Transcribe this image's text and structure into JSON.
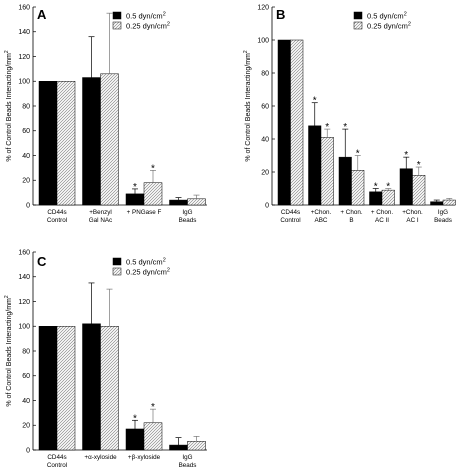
{
  "units": {
    "legend_dyn_1": "0.5 dyn/cm",
    "legend_dyn_2": "0.25 dyn/cm",
    "legend_sup": "2",
    "ylabel_main": "% of Control Beads Interacting/mm",
    "ylabel_sup": "2"
  },
  "chart_data": [
    {
      "id": "A",
      "type": "bar",
      "panel_label": "A",
      "ylabel": "% of Control Beads Interacting/mm²",
      "ylim": [
        0,
        160
      ],
      "yticks": [
        0,
        20,
        40,
        60,
        80,
        100,
        120,
        140,
        160
      ],
      "ytick_labels": [
        "0",
        "20",
        "40",
        "60",
        "80",
        "100",
        "120",
        "140",
        "160"
      ],
      "legend": [
        "0.5 dyn/cm²",
        "0.25 dyn/cm²"
      ],
      "legend_position": "top-right",
      "categories": [
        [
          "CD44s",
          "Control"
        ],
        [
          "+Benzyl",
          "Gal NAc"
        ],
        [
          "+ PNGase F"
        ],
        [
          "IgG",
          "Beads"
        ]
      ],
      "series": [
        {
          "name": "0.5 dyn/cm²",
          "values": [
            100,
            103,
            9,
            4
          ],
          "errors": [
            0,
            33,
            4,
            2
          ],
          "sig": [
            false,
            false,
            true,
            false
          ]
        },
        {
          "name": "0.25 dyn/cm²",
          "values": [
            100,
            106,
            18,
            5
          ],
          "errors": [
            0,
            49,
            10,
            3
          ],
          "sig": [
            false,
            false,
            true,
            false
          ]
        }
      ]
    },
    {
      "id": "B",
      "type": "bar",
      "panel_label": "B",
      "ylabel": "% of Control Beads Interacting/mm²",
      "ylim": [
        0,
        120
      ],
      "yticks": [
        0,
        20,
        40,
        60,
        80,
        100,
        120
      ],
      "ytick_labels": [
        "0",
        "20",
        "40",
        "60",
        "80",
        "100",
        "120"
      ],
      "legend": [
        "0.5 dyn/cm²",
        "0.25 dyn/cm²"
      ],
      "legend_position": "top-right",
      "categories": [
        [
          "CD44s",
          "Control"
        ],
        [
          "+Chon.",
          "ABC"
        ],
        [
          "+ Chon.",
          "B"
        ],
        [
          "+ Chon.",
          "AC II"
        ],
        [
          "+Chon.",
          "AC I"
        ],
        [
          "IgG",
          "Beads"
        ]
      ],
      "series": [
        {
          "name": "0.5 dyn/cm²",
          "values": [
            100,
            48,
            29,
            8,
            22,
            2
          ],
          "errors": [
            0,
            14,
            17,
            2,
            7,
            1
          ],
          "sig": [
            false,
            true,
            true,
            true,
            true,
            false
          ]
        },
        {
          "name": "0.25 dyn/cm²",
          "values": [
            100,
            41,
            21,
            9,
            18,
            3
          ],
          "errors": [
            0,
            5,
            9,
            1,
            5,
            1
          ],
          "sig": [
            false,
            true,
            true,
            true,
            true,
            false
          ]
        }
      ]
    },
    {
      "id": "C",
      "type": "bar",
      "panel_label": "C",
      "ylabel": "% of Control Beads Interacting/mm²",
      "ylim": [
        0,
        160
      ],
      "yticks": [
        0,
        20,
        40,
        60,
        80,
        100,
        120,
        140,
        160
      ],
      "ytick_labels": [
        "0",
        "20",
        "40",
        "60",
        "80",
        "100",
        "120",
        "140",
        "160"
      ],
      "legend": [
        "0.5 dyn/cm²",
        "0.25 dyn/cm²"
      ],
      "legend_position": "top-right",
      "categories": [
        [
          "CD44s",
          "Control"
        ],
        [
          "+α-xyloside"
        ],
        [
          "+β-xyloside"
        ],
        [
          "IgG",
          "Beads"
        ]
      ],
      "series": [
        {
          "name": "0.5 dyn/cm²",
          "values": [
            100,
            102,
            17,
            4
          ],
          "errors": [
            0,
            33,
            7,
            6
          ],
          "sig": [
            false,
            false,
            true,
            false
          ]
        },
        {
          "name": "0.25 dyn/cm²",
          "values": [
            100,
            100,
            22,
            7
          ],
          "errors": [
            0,
            30,
            11,
            4
          ],
          "sig": [
            false,
            false,
            true,
            false
          ]
        }
      ]
    }
  ]
}
